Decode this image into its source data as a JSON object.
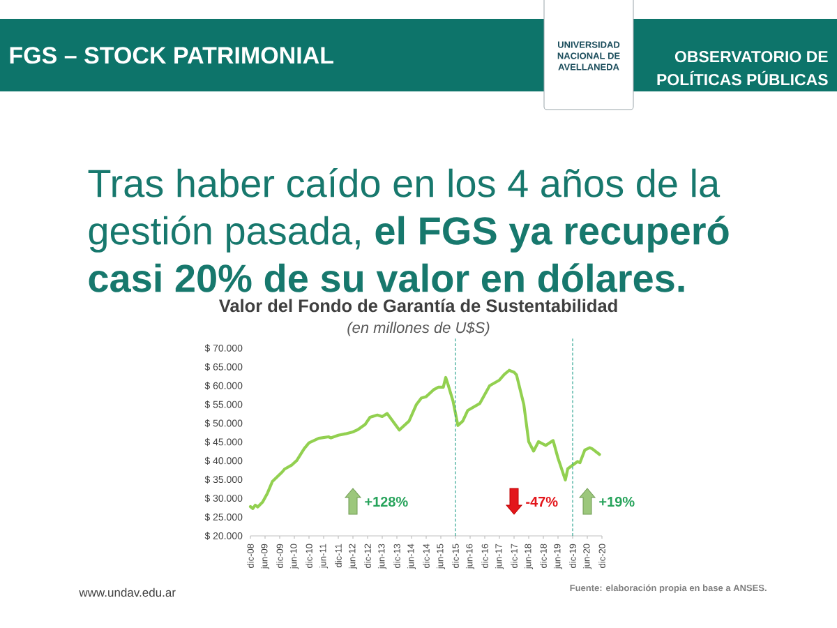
{
  "chart_data": {
    "type": "line",
    "title": "Valor del Fondo de Garantía de Sustentabilidad",
    "subtitle": "(en millones de U$S)",
    "annotations": [
      "FGS – STOCK PATRIMONIAL",
      "OBSERVATORIO DE POLÍTICAS PÚBLICAS",
      "UNIVERSIDAD NACIONAL DE AVELLANEDA",
      "Tras haber caído en los 4 años de la gestión pasada, **el FGS ya recuperó casi 20% de su valor en dólares.**",
      "+128%",
      "-47%",
      "+19%",
      "Fuente: elaboración propia en base a ANSES.",
      "www.undav.edu.ar"
    ],
    "x": [
      "2008-12",
      "2009-01",
      "2009-02",
      "2009-03",
      "2009-05",
      "2009-07",
      "2009-09",
      "2010-01",
      "2010-02",
      "2010-05",
      "2010-07",
      "2010-10",
      "2010-12",
      "2011-04",
      "2011-08",
      "2011-09",
      "2011-12",
      "2012-03",
      "2012-06",
      "2012-08",
      "2012-11",
      "2013-01",
      "2013-04",
      "2013-06",
      "2013-08",
      "2014-01",
      "2014-05",
      "2014-08",
      "2014-10",
      "2014-12",
      "2015-03",
      "2015-05",
      "2015-07",
      "2015-08",
      "2015-09",
      "2015-11",
      "2016-01",
      "2016-03",
      "2016-05",
      "2016-10",
      "2017-02",
      "2017-06",
      "2017-08",
      "2017-10",
      "2017-12",
      "2018-01",
      "2018-04",
      "2018-06",
      "2018-08",
      "2018-10",
      "2019-01",
      "2019-04",
      "2019-06",
      "2019-09",
      "2019-10",
      "2020-02",
      "2020-03",
      "2020-05",
      "2020-07",
      "2020-08",
      "2020-11"
    ],
    "values": [
      27800,
      27300,
      28200,
      27700,
      29000,
      31400,
      34500,
      37000,
      37800,
      38900,
      40100,
      43200,
      44800,
      46000,
      46400,
      46100,
      46800,
      47200,
      47700,
      48300,
      49700,
      51600,
      52200,
      51800,
      52600,
      48200,
      50600,
      55000,
      56700,
      57100,
      58900,
      59600,
      59600,
      62200,
      60200,
      55900,
      49400,
      50600,
      53400,
      55300,
      60000,
      61500,
      63000,
      64100,
      63600,
      62900,
      55000,
      45100,
      42600,
      45100,
      44100,
      45400,
      40700,
      34900,
      37900,
      39800,
      39500,
      42900,
      43500,
      43200,
      41700
    ],
    "color": "#92d050",
    "xlim": [
      "2008-12",
      "2020-12"
    ],
    "xticks": [
      {
        "value": "2008-12",
        "label": "dic-08"
      },
      {
        "value": "2009-06",
        "label": "jun-09"
      },
      {
        "value": "2009-12",
        "label": "dic-09"
      },
      {
        "value": "2010-06",
        "label": "jun-10"
      },
      {
        "value": "2010-12",
        "label": "dic-10"
      },
      {
        "value": "2011-06",
        "label": "jun-11"
      },
      {
        "value": "2011-12",
        "label": "dic-11"
      },
      {
        "value": "2012-06",
        "label": "jun-12"
      },
      {
        "value": "2012-12",
        "label": "dic-12"
      },
      {
        "value": "2013-06",
        "label": "jun-13"
      },
      {
        "value": "2013-12",
        "label": "dic-13"
      },
      {
        "value": "2014-06",
        "label": "jun-14"
      },
      {
        "value": "2014-12",
        "label": "dic-14"
      },
      {
        "value": "2015-06",
        "label": "jun-15"
      },
      {
        "value": "2015-12",
        "label": "dic-15"
      },
      {
        "value": "2016-06",
        "label": "jun-16"
      },
      {
        "value": "2016-12",
        "label": "dic-16"
      },
      {
        "value": "2017-06",
        "label": "jun-17"
      },
      {
        "value": "2017-12",
        "label": "dic-17"
      },
      {
        "value": "2018-06",
        "label": "jun-18"
      },
      {
        "value": "2018-12",
        "label": "dic-18"
      },
      {
        "value": "2019-06",
        "label": "jun-19"
      },
      {
        "value": "2019-12",
        "label": "dic-19"
      },
      {
        "value": "2020-06",
        "label": "jun-20"
      },
      {
        "value": "2020-12",
        "label": "dic-20"
      }
    ],
    "ylim": [
      20000,
      70000
    ],
    "yticks": [
      {
        "value": 20000,
        "label": "$ 20.000"
      },
      {
        "value": 25000,
        "label": "$ 25.000"
      },
      {
        "value": 30000,
        "label": "$ 30.000"
      },
      {
        "value": 35000,
        "label": "$ 35.000"
      },
      {
        "value": 40000,
        "label": "$ 40.000"
      },
      {
        "value": 45000,
        "label": "$ 45.000"
      },
      {
        "value": 50000,
        "label": "$ 50.000"
      },
      {
        "value": 55000,
        "label": "$ 55.000"
      },
      {
        "value": 60000,
        "label": "$ 60.000"
      },
      {
        "value": 65000,
        "label": "$ 65.000"
      },
      {
        "value": 70000,
        "label": "$ 70.000"
      }
    ],
    "ref_lines": [
      {
        "axis": "x",
        "value": "2015-12",
        "color": "#1f9e89",
        "line_style": "dashed"
      },
      {
        "axis": "x",
        "value": "2019-12",
        "color": "#1f9e89",
        "line_style": "dashed"
      }
    ]
  }
}
